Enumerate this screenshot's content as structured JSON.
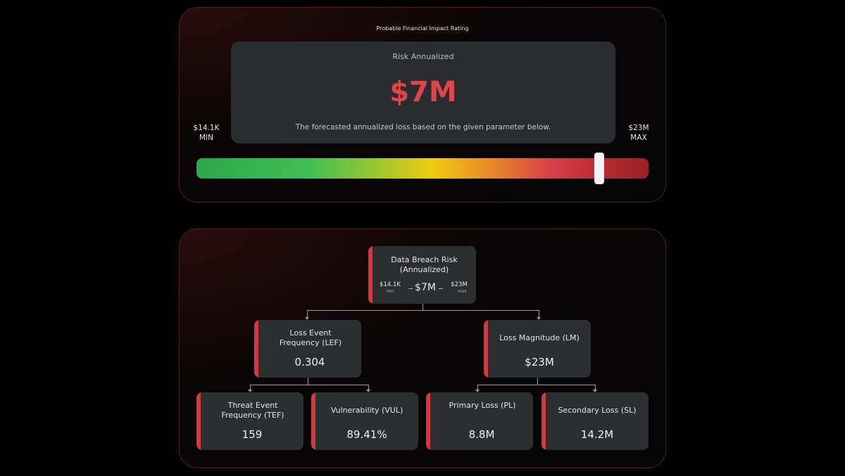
{
  "rating_panel": {
    "title": "Probable Financial Impact Rating",
    "card": {
      "label": "Risk Annualized",
      "value": "$7M",
      "description": "The forecasted annualized loss based on the given parameter below."
    },
    "min": {
      "value": "$14.1K",
      "label": "MIN"
    },
    "max": {
      "value": "$23M",
      "label": "MAX"
    }
  },
  "tree": {
    "root": {
      "title": "Data Breach Risk (Annualized)",
      "min": "$14.1K",
      "min_label": "min",
      "value": "$7M",
      "max": "$23M",
      "max_label": "max"
    },
    "nodes": [
      {
        "title": "Loss Event Frequency (LEF)",
        "value": "0.304"
      },
      {
        "title": "Loss Magnitude (LM)",
        "value": "$23M"
      },
      {
        "title": "Threat Event Frequency (TEF)",
        "value": "159"
      },
      {
        "title": "Vulnerability (VUL)",
        "value": "89.41%"
      },
      {
        "title": "Primary Loss (PL)",
        "value": "8.8M"
      },
      {
        "title": "Secondary Loss (SL)",
        "value": "14.2M"
      }
    ]
  }
}
